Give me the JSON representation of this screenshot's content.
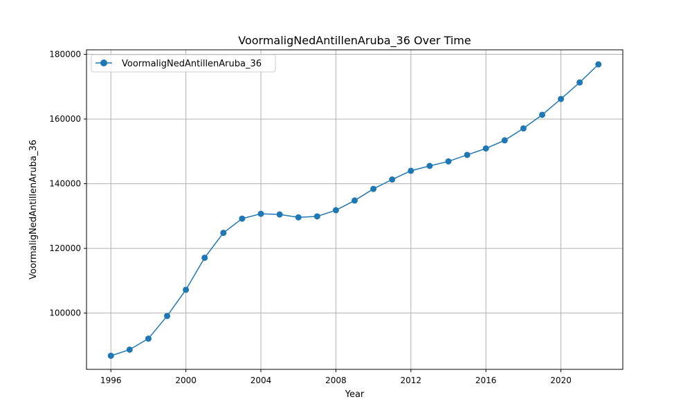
{
  "chart_data": {
    "type": "line",
    "title": "VoormaligNedAntillenAruba_36 Over Time",
    "xlabel": "Year",
    "ylabel": "VoormaligNedAntillenAruba_36",
    "xlim": [
      1994.7,
      2023.3
    ],
    "ylim": [
      82600,
      181400
    ],
    "xticks": [
      1996,
      2000,
      2004,
      2008,
      2012,
      2016,
      2020
    ],
    "yticks": [
      100000,
      120000,
      140000,
      160000,
      180000
    ],
    "grid": true,
    "legend_position": "top-left",
    "series": [
      {
        "name": "VoormaligNedAntillenAruba_36",
        "color": "#1f77b4",
        "x": [
          1996,
          1997,
          1998,
          1999,
          2000,
          2001,
          2002,
          2003,
          2004,
          2005,
          2006,
          2007,
          2008,
          2009,
          2010,
          2011,
          2012,
          2013,
          2014,
          2015,
          2016,
          2017,
          2018,
          2019,
          2020,
          2021,
          2022
        ],
        "y": [
          86800,
          88700,
          92100,
          99100,
          107200,
          117100,
          124800,
          129200,
          130700,
          130500,
          129600,
          129900,
          131800,
          134800,
          138400,
          141300,
          144000,
          145500,
          146900,
          148900,
          150900,
          153400,
          157100,
          161300,
          166200,
          171300,
          176900
        ]
      }
    ]
  }
}
